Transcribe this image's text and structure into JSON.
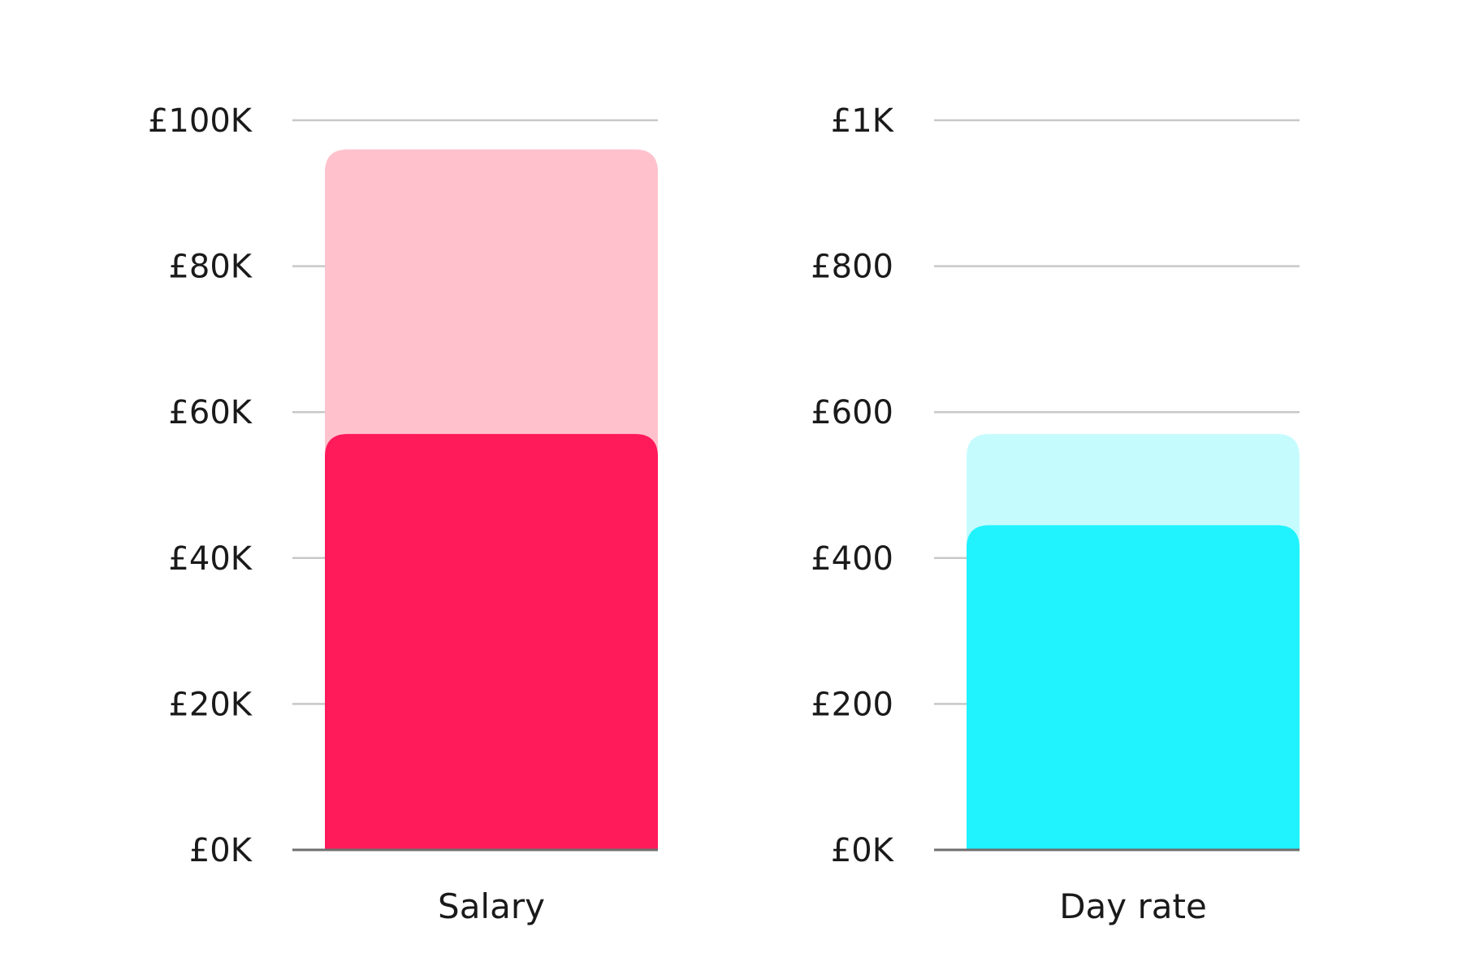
{
  "chart_data": [
    {
      "type": "bar",
      "title": "",
      "categories": [
        "Salary"
      ],
      "xlabel": "",
      "ylabel": "",
      "ylim": [
        0,
        100000
      ],
      "yticks": [
        0,
        20000,
        40000,
        60000,
        80000,
        100000
      ],
      "ytick_labels": [
        "£0K",
        "£20K",
        "£40K",
        "£60K",
        "£80K",
        "£100K"
      ],
      "grid": true,
      "overlapping_bars": true,
      "series": [
        {
          "values": [
            96000
          ],
          "color": "#FFC2CD"
        },
        {
          "values": [
            57000
          ],
          "color": "#FF1A5A"
        }
      ]
    },
    {
      "type": "bar",
      "title": "",
      "categories": [
        "Day rate"
      ],
      "xlabel": "",
      "ylabel": "",
      "ylim": [
        0,
        1000
      ],
      "yticks": [
        0,
        200,
        400,
        600,
        800,
        1000
      ],
      "ytick_labels": [
        "£0K",
        "£200",
        "£400",
        "£600",
        "£800",
        "£1K"
      ],
      "grid": true,
      "overlapping_bars": true,
      "series": [
        {
          "values": [
            570
          ],
          "color": "#C6FBFE"
        },
        {
          "values": [
            445
          ],
          "color": "#20F3FE"
        }
      ]
    }
  ],
  "colors": {
    "grid": "#c8c8c8",
    "baseline": "#6e6e6e",
    "text": "#1a1a1a"
  }
}
